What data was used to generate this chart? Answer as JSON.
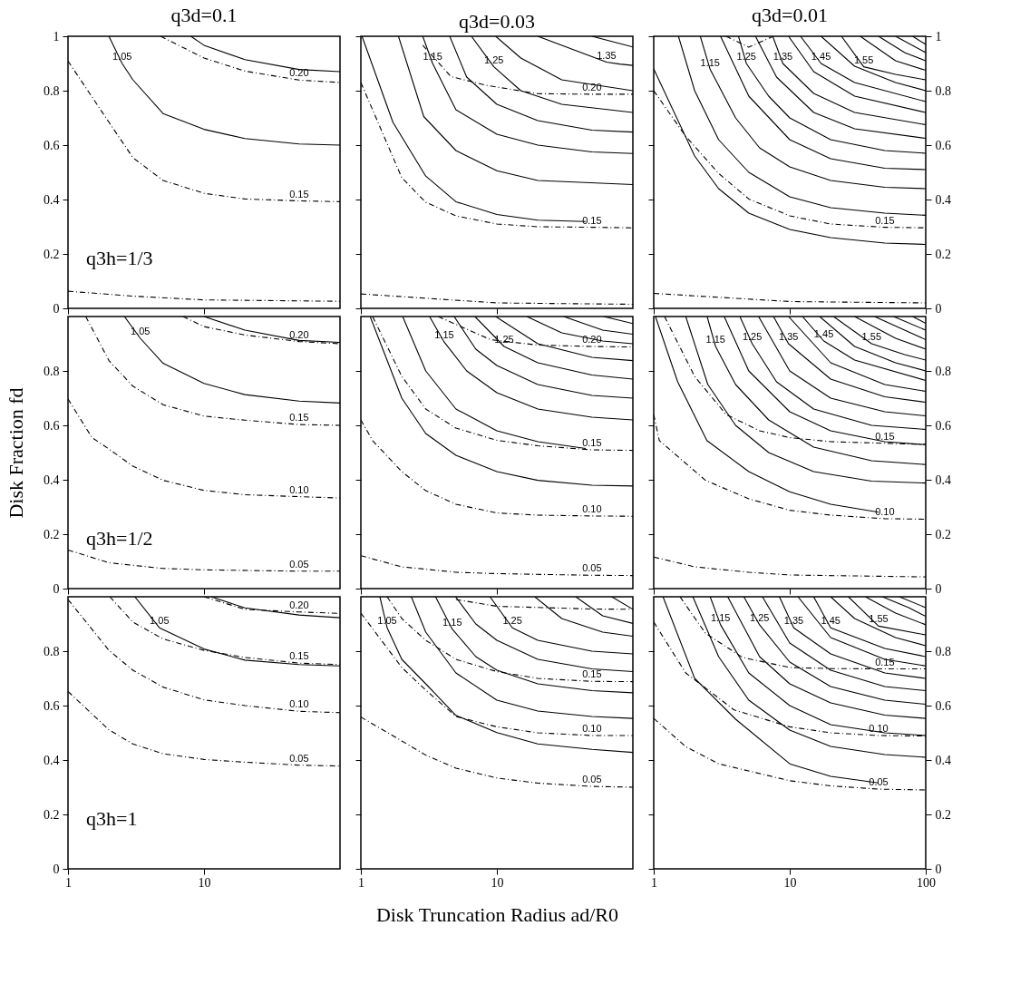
{
  "chart_data": [
    {
      "type": "line",
      "title": "q3d=0.1",
      "log": "x",
      "xlim": [
        1,
        100
      ],
      "ylim": [
        0,
        1
      ],
      "xticks": [
        1,
        10
      ],
      "yticks": [
        0,
        0.2,
        0.4,
        0.6,
        0.8,
        1
      ],
      "tick_labels": "y",
      "annotations": [
        "q3h=1/3"
      ],
      "series": [
        {
          "color": "#000000",
          "line_style": "solid",
          "x": [
            8,
            10,
            20,
            50,
            100
          ],
          "values": [
            1,
            0.967,
            0.914,
            0.878,
            0.87
          ]
        },
        {
          "name": "1.05",
          "color": "#000000",
          "line_style": "solid",
          "x": [
            2,
            2.5,
            3,
            5,
            10,
            20,
            50,
            100
          ],
          "values": [
            1,
            0.9,
            0.84,
            0.716,
            0.658,
            0.624,
            0.604,
            0.6
          ]
        },
        {
          "name": "0.20",
          "color": "#000000",
          "line_style": "dashed",
          "x": [
            4.8,
            10,
            20,
            50,
            100
          ],
          "values": [
            1,
            0.92,
            0.872,
            0.839,
            0.83
          ]
        },
        {
          "name": "0.15",
          "color": "#000000",
          "line_style": "dashed",
          "x": [
            1,
            2,
            3,
            5,
            10,
            20,
            50,
            100
          ],
          "values": [
            0.909,
            0.684,
            0.554,
            0.47,
            0.423,
            0.402,
            0.395,
            0.392
          ]
        },
        {
          "color": "#000000",
          "line_style": "dashed",
          "x": [
            1,
            3,
            10,
            100
          ],
          "values": [
            0.063,
            0.045,
            0.031,
            0.026
          ]
        }
      ]
    },
    {
      "type": "line",
      "title": "q3d=0.03",
      "log": "x",
      "xlim": [
        1,
        100
      ],
      "ylim": [
        0,
        1
      ],
      "xticks": [
        1,
        10
      ],
      "yticks": [
        0,
        0.2,
        0.4,
        0.6,
        0.8,
        1
      ],
      "tick_labels": false,
      "series": [
        {
          "color": "#000000",
          "line_style": "solid",
          "x": [
            1.02,
            1.72,
            3,
            5,
            10,
            20,
            45
          ],
          "values": [
            1,
            0.684,
            0.486,
            0.392,
            0.345,
            0.324,
            0.319
          ]
        },
        {
          "color": "#000000",
          "line_style": "solid",
          "x": [
            1.89,
            2.9,
            5,
            10,
            20,
            100
          ],
          "values": [
            1,
            0.705,
            0.58,
            0.506,
            0.47,
            0.455
          ]
        },
        {
          "name": "1.15",
          "color": "#000000",
          "line_style": "solid",
          "x": [
            2.85,
            3.37,
            5,
            10,
            20,
            50,
            100
          ],
          "values": [
            1,
            0.9,
            0.73,
            0.64,
            0.6,
            0.575,
            0.569
          ]
        },
        {
          "color": "#000000",
          "line_style": "solid",
          "x": [
            4.5,
            6,
            10,
            20,
            50,
            100
          ],
          "values": [
            1,
            0.85,
            0.75,
            0.69,
            0.655,
            0.648
          ]
        },
        {
          "name": "1.25",
          "color": "#000000",
          "line_style": "solid",
          "x": [
            6.5,
            9.5,
            15,
            30,
            100
          ],
          "values": [
            1,
            0.888,
            0.8,
            0.75,
            0.72
          ]
        },
        {
          "color": "#000000",
          "line_style": "solid",
          "x": [
            9.8,
            15,
            30,
            100
          ],
          "values": [
            1,
            0.92,
            0.84,
            0.8
          ]
        },
        {
          "name": "1.35",
          "color": "#000000",
          "line_style": "solid",
          "x": [
            20,
            64,
            80,
            100
          ],
          "values": [
            1,
            0.905,
            0.898,
            0.893
          ]
        },
        {
          "color": "#000000",
          "line_style": "solid",
          "x": [
            50,
            100
          ],
          "values": [
            1,
            0.961
          ]
        },
        {
          "name": "0.20",
          "color": "#000000",
          "line_style": "dashed",
          "x": [
            2.85,
            4.6,
            8.3,
            20,
            50,
            100
          ],
          "values": [
            0.967,
            0.852,
            0.82,
            0.789,
            0.787,
            0.787
          ]
        },
        {
          "name": "0.15",
          "color": "#000000",
          "line_style": "dashed",
          "x": [
            1,
            2,
            3,
            5,
            10,
            20,
            50,
            100
          ],
          "values": [
            0.83,
            0.48,
            0.39,
            0.34,
            0.31,
            0.3,
            0.298,
            0.296
          ]
        },
        {
          "color": "#000000",
          "line_style": "dashed",
          "x": [
            1,
            10,
            100
          ],
          "values": [
            0.053,
            0.02,
            0.015
          ]
        }
      ]
    },
    {
      "type": "line",
      "title": "q3d=0.01",
      "log": "x",
      "xlim": [
        1,
        100
      ],
      "ylim": [
        0,
        1
      ],
      "xticks": [
        1,
        10,
        100
      ],
      "yticks": [
        0,
        0.2,
        0.4,
        0.6,
        0.8,
        1
      ],
      "tick_labels": "y",
      "series": [
        {
          "color": "#000000",
          "line_style": "solid",
          "x": [
            1,
            2,
            3,
            5,
            10,
            20,
            50,
            100
          ],
          "values": [
            0.88,
            0.56,
            0.44,
            0.35,
            0.29,
            0.26,
            0.24,
            0.235
          ]
        },
        {
          "color": "#000000",
          "line_style": "solid",
          "x": [
            1.52,
            2,
            3,
            5,
            10,
            20,
            50,
            100
          ],
          "values": [
            1,
            0.8,
            0.62,
            0.5,
            0.41,
            0.37,
            0.35,
            0.342
          ]
        },
        {
          "name": "1.15",
          "color": "#000000",
          "line_style": "solid",
          "x": [
            2.2,
            2.6,
            4,
            6,
            10,
            20,
            50,
            100
          ],
          "values": [
            1,
            0.878,
            0.7,
            0.59,
            0.52,
            0.47,
            0.445,
            0.44
          ]
        },
        {
          "color": "#000000",
          "line_style": "solid",
          "x": [
            3.1,
            5,
            10,
            20,
            50,
            100
          ],
          "values": [
            1,
            0.78,
            0.62,
            0.55,
            0.515,
            0.51
          ]
        },
        {
          "name": "1.25",
          "color": "#000000",
          "line_style": "solid",
          "x": [
            4.2,
            4.8,
            7,
            10,
            20,
            50,
            100
          ],
          "values": [
            1,
            0.9,
            0.78,
            0.7,
            0.62,
            0.58,
            0.57
          ]
        },
        {
          "color": "#000000",
          "line_style": "solid",
          "x": [
            5.6,
            8,
            15,
            30,
            100
          ],
          "values": [
            1,
            0.85,
            0.72,
            0.66,
            0.625
          ]
        },
        {
          "name": "1.35",
          "color": "#000000",
          "line_style": "solid",
          "x": [
            7.5,
            8.9,
            15,
            30,
            100
          ],
          "values": [
            1,
            0.9,
            0.79,
            0.72,
            0.675
          ]
        },
        {
          "color": "#000000",
          "line_style": "solid",
          "x": [
            9.8,
            15,
            30,
            100
          ],
          "values": [
            1,
            0.87,
            0.78,
            0.72
          ]
        },
        {
          "name": "1.45",
          "color": "#000000",
          "line_style": "solid",
          "x": [
            12,
            17,
            30,
            100
          ],
          "values": [
            1,
            0.9,
            0.83,
            0.76
          ]
        },
        {
          "color": "#000000",
          "line_style": "solid",
          "x": [
            17,
            30,
            60,
            100
          ],
          "values": [
            1,
            0.89,
            0.83,
            0.8
          ]
        },
        {
          "name": "1.55",
          "color": "#000000",
          "line_style": "solid",
          "x": [
            24,
            35,
            60,
            100
          ],
          "values": [
            1,
            0.888,
            0.86,
            0.84
          ]
        },
        {
          "color": "#000000",
          "line_style": "solid",
          "x": [
            33,
            60,
            100
          ],
          "values": [
            1,
            0.91,
            0.875
          ]
        },
        {
          "color": "#000000",
          "line_style": "solid",
          "x": [
            45,
            70,
            100
          ],
          "values": [
            1,
            0.94,
            0.91
          ]
        },
        {
          "color": "#000000",
          "line_style": "solid",
          "x": [
            60,
            100
          ],
          "values": [
            1,
            0.94
          ]
        },
        {
          "color": "#000000",
          "line_style": "solid",
          "x": [
            80,
            100
          ],
          "values": [
            1,
            0.97
          ]
        },
        {
          "color": "#000000",
          "line_style": "dashed",
          "x": [
            3.4,
            5,
            7.6
          ],
          "values": [
            1,
            0.96,
            1
          ]
        },
        {
          "name": "0.15",
          "color": "#000000",
          "line_style": "dashed",
          "x": [
            1,
            1.72,
            3,
            5,
            10,
            20,
            50,
            100
          ],
          "values": [
            0.8,
            0.632,
            0.496,
            0.402,
            0.34,
            0.31,
            0.298,
            0.296
          ]
        },
        {
          "color": "#000000",
          "line_style": "dashed",
          "x": [
            1,
            10,
            100
          ],
          "values": [
            0.055,
            0.025,
            0.02
          ]
        }
      ]
    },
    {
      "type": "line",
      "ylabel": "Disk Fraction fd",
      "log": "x",
      "xlim": [
        1,
        100
      ],
      "ylim": [
        0,
        1
      ],
      "xticks": [
        1,
        10
      ],
      "yticks": [
        0,
        0.2,
        0.4,
        0.6,
        0.8
      ],
      "tick_labels": "y",
      "annotations": [
        "q3h=1/2"
      ],
      "series": [
        {
          "color": "#000000",
          "line_style": "solid",
          "x": [
            10,
            20,
            50,
            100
          ],
          "values": [
            1,
            0.95,
            0.912,
            0.905
          ]
        },
        {
          "name": "0.20",
          "color": "#000000",
          "line_style": "dashed",
          "x": [
            7,
            10,
            20,
            50,
            100
          ],
          "values": [
            1,
            0.963,
            0.932,
            0.908,
            0.9
          ]
        },
        {
          "name": "1.05",
          "color": "#000000",
          "line_style": "solid",
          "x": [
            2.6,
            3.4,
            5,
            10,
            20,
            50,
            100
          ],
          "values": [
            1,
            0.92,
            0.828,
            0.754,
            0.713,
            0.689,
            0.682
          ]
        },
        {
          "name": "0.15",
          "color": "#000000",
          "line_style": "dashed",
          "x": [
            1.35,
            2,
            3,
            5,
            10,
            20,
            50,
            100
          ],
          "values": [
            1,
            0.838,
            0.744,
            0.676,
            0.634,
            0.619,
            0.603,
            0.6
          ]
        },
        {
          "name": "0.10",
          "color": "#000000",
          "line_style": "dashed",
          "x": [
            1,
            1.5,
            2,
            3,
            5,
            10,
            20,
            50,
            100
          ],
          "values": [
            0.697,
            0.555,
            0.513,
            0.45,
            0.398,
            0.361,
            0.345,
            0.338,
            0.333
          ]
        },
        {
          "name": "0.05",
          "color": "#000000",
          "line_style": "dashed",
          "x": [
            1,
            2,
            5,
            10,
            50,
            100
          ],
          "values": [
            0.142,
            0.095,
            0.074,
            0.069,
            0.064,
            0.064
          ]
        }
      ]
    },
    {
      "type": "line",
      "log": "x",
      "xlim": [
        1,
        100
      ],
      "ylim": [
        0,
        1
      ],
      "xticks": [
        1,
        10
      ],
      "yticks": [
        0,
        0.2,
        0.4,
        0.6,
        0.8
      ],
      "tick_labels": false,
      "series": [
        {
          "color": "#000000",
          "line_style": "solid",
          "x": [
            1.17,
            2,
            3,
            5,
            10,
            20,
            50,
            100
          ],
          "values": [
            1,
            0.7,
            0.57,
            0.49,
            0.43,
            0.398,
            0.38,
            0.377
          ]
        },
        {
          "color": "#000000",
          "line_style": "solid",
          "x": [
            2.03,
            3,
            5,
            10,
            20,
            45
          ],
          "values": [
            1,
            0.8,
            0.66,
            0.58,
            0.54,
            0.515
          ]
        },
        {
          "name": "1.15",
          "color": "#000000",
          "line_style": "solid",
          "x": [
            3.2,
            4.1,
            6,
            10,
            20,
            50,
            100
          ],
          "values": [
            1,
            0.906,
            0.8,
            0.72,
            0.66,
            0.63,
            0.62
          ]
        },
        {
          "color": "#000000",
          "line_style": "solid",
          "x": [
            4.85,
            7,
            10,
            20,
            50,
            100
          ],
          "values": [
            1,
            0.88,
            0.82,
            0.75,
            0.71,
            0.7
          ]
        },
        {
          "name": "1.25",
          "color": "#000000",
          "line_style": "solid",
          "x": [
            6.9,
            11.3,
            20,
            50,
            100
          ],
          "values": [
            1,
            0.89,
            0.83,
            0.785,
            0.77
          ]
        },
        {
          "color": "#000000",
          "line_style": "solid",
          "x": [
            9.8,
            20,
            50,
            100
          ],
          "values": [
            1,
            0.9,
            0.85,
            0.838
          ]
        },
        {
          "color": "#000000",
          "line_style": "solid",
          "x": [
            16.6,
            30,
            60,
            100
          ],
          "values": [
            1,
            0.94,
            0.91,
            0.9
          ]
        },
        {
          "color": "#000000",
          "line_style": "solid",
          "x": [
            31,
            60,
            100
          ],
          "values": [
            1,
            0.95,
            0.935
          ]
        },
        {
          "color": "#000000",
          "line_style": "solid",
          "x": [
            61,
            100
          ],
          "values": [
            1,
            0.974
          ]
        },
        {
          "name": "0.20",
          "color": "#000000",
          "line_style": "dashed",
          "x": [
            3.7,
            9,
            20,
            50,
            100
          ],
          "values": [
            1,
            0.915,
            0.895,
            0.89,
            0.888
          ]
        },
        {
          "name": "0.15",
          "color": "#000000",
          "line_style": "dashed",
          "x": [
            1.22,
            2,
            3,
            5,
            10,
            20,
            50,
            100
          ],
          "values": [
            1,
            0.78,
            0.66,
            0.59,
            0.545,
            0.525,
            0.51,
            0.508
          ]
        },
        {
          "name": "0.10",
          "color": "#000000",
          "line_style": "dashed",
          "x": [
            1,
            1.22,
            2,
            3,
            5,
            10,
            20,
            50,
            100
          ],
          "values": [
            0.62,
            0.544,
            0.43,
            0.36,
            0.31,
            0.278,
            0.27,
            0.267,
            0.266
          ]
        },
        {
          "name": "0.05",
          "color": "#000000",
          "line_style": "dashed",
          "x": [
            1,
            2,
            5,
            10,
            50,
            100
          ],
          "values": [
            0.121,
            0.08,
            0.06,
            0.055,
            0.049,
            0.048
          ]
        }
      ]
    },
    {
      "type": "line",
      "log": "x",
      "xlim": [
        1,
        100
      ],
      "ylim": [
        0,
        1
      ],
      "xticks": [
        1,
        10,
        100
      ],
      "yticks": [
        0,
        0.2,
        0.4,
        0.6,
        0.8
      ],
      "tick_labels": "y",
      "series": [
        {
          "color": "#000000",
          "line_style": "solid",
          "x": [
            1.03,
            1.5,
            2.46,
            5,
            10,
            20,
            45
          ],
          "values": [
            1,
            0.76,
            0.544,
            0.43,
            0.356,
            0.31,
            0.281
          ]
        },
        {
          "color": "#000000",
          "line_style": "solid",
          "x": [
            1.72,
            2.5,
            4,
            7,
            15,
            40,
            100
          ],
          "values": [
            1,
            0.75,
            0.6,
            0.5,
            0.43,
            0.395,
            0.388
          ]
        },
        {
          "name": "1.15",
          "color": "#000000",
          "line_style": "solid",
          "x": [
            2.47,
            2.85,
            4,
            7,
            15,
            40,
            100
          ],
          "values": [
            1,
            0.89,
            0.75,
            0.62,
            0.52,
            0.47,
            0.456
          ]
        },
        {
          "color": "#000000",
          "line_style": "solid",
          "x": [
            3.3,
            5,
            10,
            20,
            50,
            100
          ],
          "values": [
            1,
            0.8,
            0.65,
            0.58,
            0.54,
            0.529
          ]
        },
        {
          "name": "1.25",
          "color": "#000000",
          "line_style": "solid",
          "x": [
            4.3,
            5.3,
            8,
            15,
            40,
            100
          ],
          "values": [
            1,
            0.9,
            0.76,
            0.66,
            0.6,
            0.585
          ]
        },
        {
          "color": "#000000",
          "line_style": "solid",
          "x": [
            5.9,
            10,
            20,
            50,
            100
          ],
          "values": [
            1,
            0.8,
            0.7,
            0.65,
            0.635
          ]
        },
        {
          "name": "1.35",
          "color": "#000000",
          "line_style": "solid",
          "x": [
            7.6,
            9.8,
            20,
            50,
            100
          ],
          "values": [
            1,
            0.9,
            0.77,
            0.705,
            0.685
          ]
        },
        {
          "color": "#000000",
          "line_style": "solid",
          "x": [
            9.8,
            20,
            50,
            100
          ],
          "values": [
            1,
            0.83,
            0.75,
            0.725
          ]
        },
        {
          "name": "1.45",
          "color": "#000000",
          "line_style": "solid",
          "x": [
            12.4,
            17.8,
            30,
            100
          ],
          "values": [
            1,
            0.91,
            0.84,
            0.765
          ]
        },
        {
          "color": "#000000",
          "line_style": "solid",
          "x": [
            16.6,
            30,
            60,
            100
          ],
          "values": [
            1,
            0.89,
            0.83,
            0.8
          ]
        },
        {
          "name": "1.55",
          "color": "#000000",
          "line_style": "solid",
          "x": [
            21,
            40,
            70,
            100
          ],
          "values": [
            1,
            0.9,
            0.86,
            0.84
          ]
        },
        {
          "color": "#000000",
          "line_style": "solid",
          "x": [
            30,
            60,
            100
          ],
          "values": [
            1,
            0.92,
            0.88
          ]
        },
        {
          "color": "#000000",
          "line_style": "solid",
          "x": [
            42,
            70,
            100
          ],
          "values": [
            1,
            0.95,
            0.915
          ]
        },
        {
          "color": "#000000",
          "line_style": "solid",
          "x": [
            58,
            100
          ],
          "values": [
            1,
            0.95
          ]
        },
        {
          "color": "#000000",
          "line_style": "solid",
          "x": [
            80,
            100
          ],
          "values": [
            1,
            0.975
          ]
        },
        {
          "name": "0.15",
          "color": "#000000",
          "line_style": "dashed",
          "x": [
            1.2,
            2,
            3.4,
            6,
            10,
            20,
            50,
            100
          ],
          "values": [
            1,
            0.78,
            0.64,
            0.58,
            0.555,
            0.54,
            0.534,
            0.53
          ]
        },
        {
          "name": "0.10",
          "color": "#000000",
          "line_style": "dashed",
          "x": [
            1,
            1.1,
            2.4,
            5,
            10,
            20,
            50,
            100
          ],
          "values": [
            0.64,
            0.544,
            0.398,
            0.33,
            0.288,
            0.27,
            0.257,
            0.255
          ]
        },
        {
          "color": "#000000",
          "line_style": "dashed",
          "x": [
            1,
            2,
            5,
            10,
            100
          ],
          "values": [
            0.116,
            0.08,
            0.06,
            0.05,
            0.043
          ]
        }
      ]
    },
    {
      "type": "line",
      "log": "x",
      "xlim": [
        1,
        100
      ],
      "ylim": [
        0,
        1
      ],
      "xticks": [
        1,
        10
      ],
      "yticks": [
        0,
        0.2,
        0.4,
        0.6,
        0.8
      ],
      "annotations": [
        "q3h=1"
      ],
      "series": [
        {
          "color": "#000000",
          "line_style": "solid",
          "x": [
            11.3,
            20,
            50,
            100
          ],
          "values": [
            1,
            0.959,
            0.933,
            0.923
          ]
        },
        {
          "name": "0.20",
          "color": "#000000",
          "line_style": "dashed",
          "x": [
            10,
            20,
            50,
            100
          ],
          "values": [
            1,
            0.954,
            0.944,
            0.939
          ]
        },
        {
          "name": "1.05",
          "color": "#000000",
          "line_style": "solid",
          "x": [
            3.1,
            4.7,
            10,
            20,
            50,
            100
          ],
          "values": [
            1,
            0.886,
            0.808,
            0.767,
            0.751,
            0.746
          ]
        },
        {
          "name": "0.15",
          "color": "#000000",
          "line_style": "dashed",
          "x": [
            2.03,
            3,
            5,
            10,
            20,
            50,
            100
          ],
          "values": [
            1,
            0.907,
            0.845,
            0.803,
            0.777,
            0.756,
            0.751
          ]
        },
        {
          "name": "0.10",
          "color": "#000000",
          "line_style": "dashed",
          "x": [
            1,
            2,
            3,
            5,
            10,
            20,
            50,
            100
          ],
          "values": [
            0.99,
            0.803,
            0.73,
            0.668,
            0.621,
            0.6,
            0.579,
            0.574
          ]
        },
        {
          "name": "0.05",
          "color": "#000000",
          "line_style": "dashed",
          "x": [
            1,
            2,
            3,
            5,
            10,
            20,
            50,
            100
          ],
          "values": [
            0.652,
            0.511,
            0.459,
            0.423,
            0.402,
            0.392,
            0.381,
            0.378
          ]
        }
      ]
    },
    {
      "type": "line",
      "xlabel": "Disk Truncation Radius ad/R0",
      "log": "x",
      "xlim": [
        1,
        100
      ],
      "ylim": [
        0,
        1
      ],
      "xticks": [
        1,
        10
      ],
      "yticks": [
        0,
        0.2,
        0.4,
        0.6,
        0.8
      ],
      "tick_labels": "x",
      "series": [
        {
          "name": "1.05",
          "color": "#000000",
          "line_style": "solid",
          "x": [
            1.38,
            1.56,
            2,
            3,
            5,
            10,
            20,
            50,
            100
          ],
          "values": [
            1,
            0.886,
            0.77,
            0.68,
            0.564,
            0.501,
            0.459,
            0.439,
            0.428
          ]
        },
        {
          "color": "#000000",
          "line_style": "solid",
          "x": [
            2.35,
            3,
            5,
            10,
            20,
            50,
            100
          ],
          "values": [
            1,
            0.87,
            0.72,
            0.62,
            0.58,
            0.56,
            0.553
          ]
        },
        {
          "name": "1.15",
          "color": "#000000",
          "line_style": "solid",
          "x": [
            3.54,
            4.7,
            7,
            10,
            20,
            50,
            100
          ],
          "values": [
            1,
            0.881,
            0.78,
            0.73,
            0.68,
            0.655,
            0.647
          ]
        },
        {
          "color": "#000000",
          "line_style": "solid",
          "x": [
            4.97,
            7,
            10,
            20,
            50,
            100
          ],
          "values": [
            1,
            0.9,
            0.84,
            0.77,
            0.735,
            0.725
          ]
        },
        {
          "name": "1.25",
          "color": "#000000",
          "line_style": "solid",
          "x": [
            8.9,
            13,
            20,
            50,
            100
          ],
          "values": [
            1,
            0.886,
            0.84,
            0.8,
            0.79
          ]
        },
        {
          "color": "#000000",
          "line_style": "solid",
          "x": [
            19,
            30,
            60,
            100
          ],
          "values": [
            1,
            0.92,
            0.87,
            0.855
          ]
        },
        {
          "color": "#000000",
          "line_style": "solid",
          "x": [
            38,
            60,
            100
          ],
          "values": [
            1,
            0.93,
            0.902
          ]
        },
        {
          "color": "#000000",
          "line_style": "solid",
          "x": [
            70,
            100
          ],
          "values": [
            1,
            0.954
          ]
        },
        {
          "color": "#000000",
          "line_style": "dashed",
          "x": [
            5,
            10,
            50,
            100
          ],
          "values": [
            0.99,
            0.965,
            0.955,
            0.954
          ]
        },
        {
          "name": "0.15",
          "color": "#000000",
          "line_style": "dashed",
          "x": [
            1.56,
            2,
            3,
            5,
            10,
            20,
            50,
            100
          ],
          "values": [
            1,
            0.92,
            0.84,
            0.77,
            0.725,
            0.7,
            0.689,
            0.688
          ]
        },
        {
          "name": "0.10",
          "color": "#000000",
          "line_style": "dashed",
          "x": [
            1,
            2,
            3,
            5,
            10,
            20,
            50,
            100
          ],
          "values": [
            0.94,
            0.74,
            0.657,
            0.56,
            0.522,
            0.5,
            0.49,
            0.49
          ]
        },
        {
          "name": "0.05",
          "color": "#000000",
          "line_style": "dashed",
          "x": [
            1,
            2,
            3,
            5,
            10,
            20,
            50,
            100
          ],
          "values": [
            0.558,
            0.47,
            0.418,
            0.37,
            0.334,
            0.315,
            0.303,
            0.3
          ]
        }
      ]
    },
    {
      "type": "line",
      "log": "x",
      "xlim": [
        1,
        100
      ],
      "ylim": [
        0,
        1
      ],
      "xticks": [
        1,
        10,
        100
      ],
      "yticks": [
        0,
        0.2,
        0.4,
        0.6,
        0.8
      ],
      "series": [
        {
          "color": "#000000",
          "line_style": "solid",
          "x": [
            1.17,
            2,
            4,
            10,
            20,
            45
          ],
          "values": [
            1,
            0.7,
            0.55,
            0.386,
            0.34,
            0.316
          ]
        },
        {
          "color": "#000000",
          "line_style": "solid",
          "x": [
            1.94,
            3,
            5,
            10,
            20,
            50,
            100
          ],
          "values": [
            1,
            0.78,
            0.62,
            0.51,
            0.45,
            0.42,
            0.41
          ]
        },
        {
          "name": "1.15",
          "color": "#000000",
          "line_style": "solid",
          "x": [
            2.6,
            3.1,
            5,
            10,
            20,
            50,
            100
          ],
          "values": [
            1,
            0.897,
            0.72,
            0.6,
            0.53,
            0.5,
            0.49
          ]
        },
        {
          "color": "#000000",
          "line_style": "solid",
          "x": [
            3.5,
            6,
            10,
            20,
            50,
            100
          ],
          "values": [
            1,
            0.78,
            0.68,
            0.61,
            0.565,
            0.553
          ]
        },
        {
          "name": "1.25",
          "color": "#000000",
          "line_style": "solid",
          "x": [
            4.6,
            6,
            10,
            20,
            50,
            100
          ],
          "values": [
            1,
            0.897,
            0.76,
            0.67,
            0.62,
            0.605
          ]
        },
        {
          "color": "#000000",
          "line_style": "solid",
          "x": [
            6.3,
            10,
            20,
            50,
            100
          ],
          "values": [
            1,
            0.83,
            0.73,
            0.67,
            0.655
          ]
        },
        {
          "name": "1.35",
          "color": "#000000",
          "line_style": "solid",
          "x": [
            8.4,
            10.7,
            20,
            50,
            100
          ],
          "values": [
            1,
            0.886,
            0.79,
            0.72,
            0.7
          ]
        },
        {
          "color": "#000000",
          "line_style": "solid",
          "x": [
            11.5,
            20,
            50,
            100
          ],
          "values": [
            1,
            0.85,
            0.77,
            0.746
          ]
        },
        {
          "name": "1.45",
          "color": "#000000",
          "line_style": "solid",
          "x": [
            15,
            20,
            50,
            100
          ],
          "values": [
            1,
            0.886,
            0.81,
            0.78
          ]
        },
        {
          "color": "#000000",
          "line_style": "solid",
          "x": [
            20,
            30,
            60,
            100
          ],
          "values": [
            1,
            0.92,
            0.85,
            0.82
          ]
        },
        {
          "name": "1.55",
          "color": "#000000",
          "line_style": "solid",
          "x": [
            27,
            45,
            100
          ],
          "values": [
            1,
            0.892,
            0.86
          ]
        },
        {
          "color": "#000000",
          "line_style": "solid",
          "x": [
            36,
            60,
            100
          ],
          "values": [
            1,
            0.94,
            0.897
          ]
        },
        {
          "color": "#000000",
          "line_style": "solid",
          "x": [
            48,
            75,
            100
          ],
          "values": [
            1,
            0.96,
            0.928
          ]
        },
        {
          "color": "#000000",
          "line_style": "solid",
          "x": [
            64,
            100
          ],
          "values": [
            1,
            0.96
          ]
        },
        {
          "name": "0.15",
          "color": "#000000",
          "line_style": "dashed",
          "x": [
            1.56,
            2.4,
            4.5,
            10,
            20,
            50,
            100
          ],
          "values": [
            1,
            0.866,
            0.777,
            0.74,
            0.736,
            0.735,
            0.735
          ]
        },
        {
          "name": "0.10",
          "color": "#000000",
          "line_style": "dashed",
          "x": [
            1,
            1.72,
            3.9,
            10,
            20,
            45,
            100
          ],
          "values": [
            0.907,
            0.72,
            0.584,
            0.522,
            0.5,
            0.49,
            0.488
          ]
        },
        {
          "name": "0.05",
          "color": "#000000",
          "line_style": "dashed",
          "x": [
            1,
            1.72,
            3,
            10,
            20,
            45,
            100
          ],
          "values": [
            0.553,
            0.449,
            0.386,
            0.324,
            0.305,
            0.293,
            0.29
          ]
        }
      ]
    }
  ]
}
